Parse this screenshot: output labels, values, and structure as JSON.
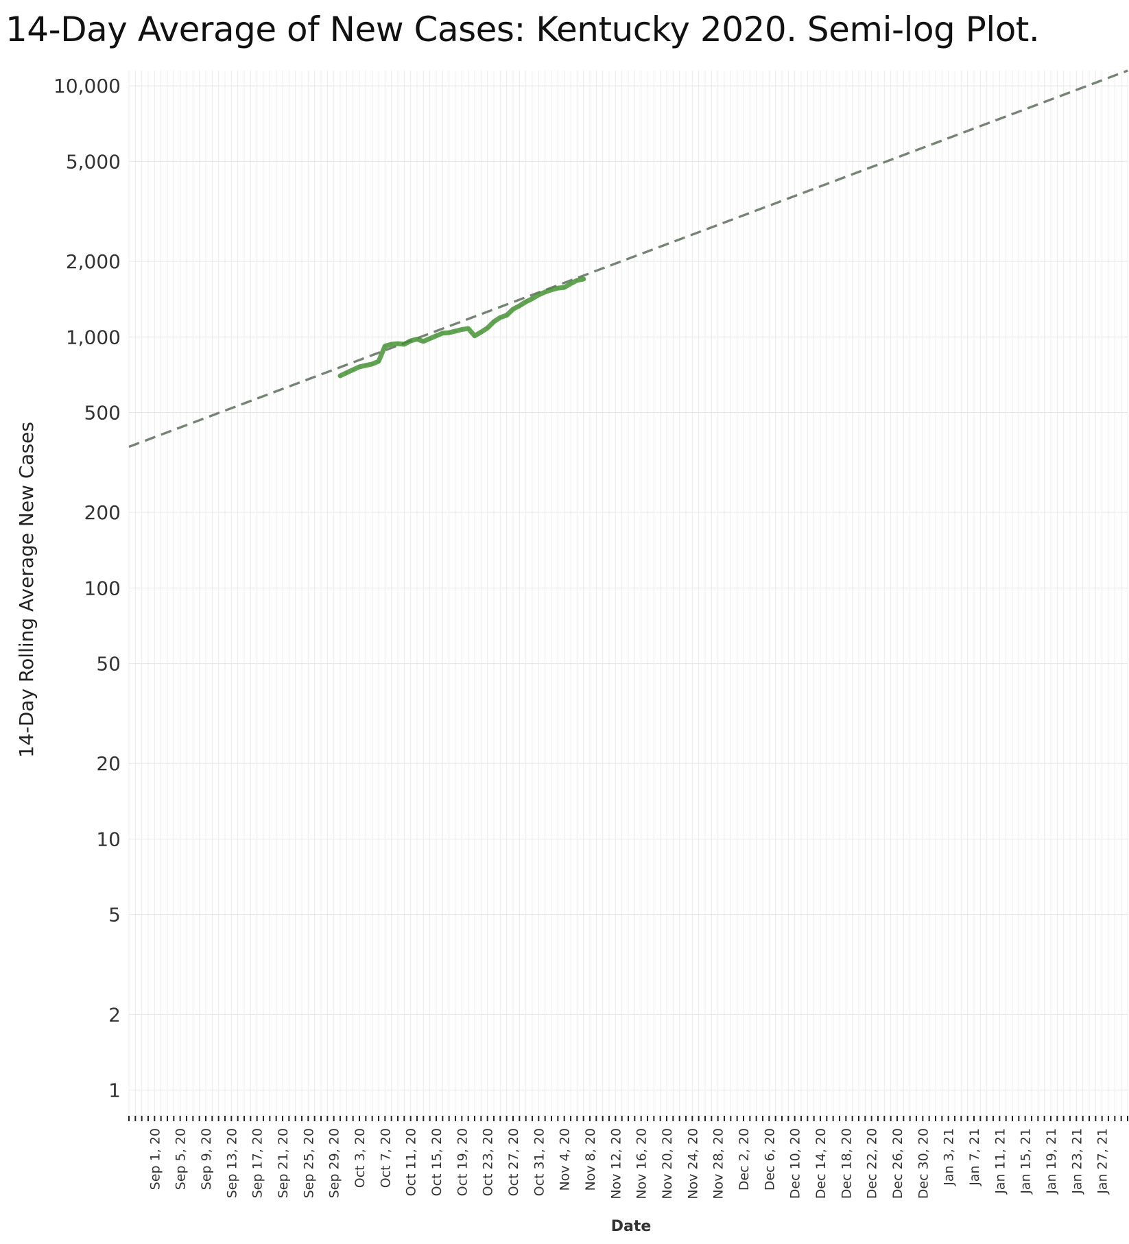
{
  "chart_data": {
    "type": "line",
    "title": "14-Day Average of New Cases:  Kentucky 2020.  Semi-log Plot.",
    "xlabel": "Date",
    "ylabel": "14-Day Rolling Average New Cases",
    "y_scale": "log",
    "ylim": [
      0.8,
      11500
    ],
    "xlim": [
      "2020-08-28",
      "2021-01-31"
    ],
    "grid": true,
    "y_ticks": [
      {
        "value": 1,
        "label": "1"
      },
      {
        "value": 2,
        "label": "2"
      },
      {
        "value": 5,
        "label": "5"
      },
      {
        "value": 10,
        "label": "10"
      },
      {
        "value": 20,
        "label": "20"
      },
      {
        "value": 50,
        "label": "50"
      },
      {
        "value": 100,
        "label": "100"
      },
      {
        "value": 200,
        "label": "200"
      },
      {
        "value": 500,
        "label": "500"
      },
      {
        "value": 1000,
        "label": "1,000"
      },
      {
        "value": 2000,
        "label": "2,000"
      },
      {
        "value": 5000,
        "label": "5,000"
      },
      {
        "value": 10000,
        "label": "10,000"
      }
    ],
    "x_ticks": [
      {
        "value": "2020-09-01",
        "label": "Sep 1, 20"
      },
      {
        "value": "2020-09-05",
        "label": "Sep 5, 20"
      },
      {
        "value": "2020-09-09",
        "label": "Sep 9, 20"
      },
      {
        "value": "2020-09-13",
        "label": "Sep 13, 20"
      },
      {
        "value": "2020-09-17",
        "label": "Sep 17, 20"
      },
      {
        "value": "2020-09-21",
        "label": "Sep 21, 20"
      },
      {
        "value": "2020-09-25",
        "label": "Sep 25, 20"
      },
      {
        "value": "2020-09-29",
        "label": "Sep 29, 20"
      },
      {
        "value": "2020-10-03",
        "label": "Oct 3, 20"
      },
      {
        "value": "2020-10-07",
        "label": "Oct 7, 20"
      },
      {
        "value": "2020-10-11",
        "label": "Oct 11, 20"
      },
      {
        "value": "2020-10-15",
        "label": "Oct 15, 20"
      },
      {
        "value": "2020-10-19",
        "label": "Oct 19, 20"
      },
      {
        "value": "2020-10-23",
        "label": "Oct 23, 20"
      },
      {
        "value": "2020-10-27",
        "label": "Oct 27, 20"
      },
      {
        "value": "2020-10-31",
        "label": "Oct 31, 20"
      },
      {
        "value": "2020-11-04",
        "label": "Nov 4, 20"
      },
      {
        "value": "2020-11-08",
        "label": "Nov 8, 20"
      },
      {
        "value": "2020-11-12",
        "label": "Nov 12, 20"
      },
      {
        "value": "2020-11-16",
        "label": "Nov 16, 20"
      },
      {
        "value": "2020-11-20",
        "label": "Nov 20, 20"
      },
      {
        "value": "2020-11-24",
        "label": "Nov 24, 20"
      },
      {
        "value": "2020-11-28",
        "label": "Nov 28, 20"
      },
      {
        "value": "2020-12-02",
        "label": "Dec 2, 20"
      },
      {
        "value": "2020-12-06",
        "label": "Dec 6, 20"
      },
      {
        "value": "2020-12-10",
        "label": "Dec 10, 20"
      },
      {
        "value": "2020-12-14",
        "label": "Dec 14, 20"
      },
      {
        "value": "2020-12-18",
        "label": "Dec 18, 20"
      },
      {
        "value": "2020-12-22",
        "label": "Dec 22, 20"
      },
      {
        "value": "2020-12-26",
        "label": "Dec 26, 20"
      },
      {
        "value": "2020-12-30",
        "label": "Dec 30, 20"
      },
      {
        "value": "2021-01-03",
        "label": "Jan 3, 21"
      },
      {
        "value": "2021-01-07",
        "label": "Jan 7, 21"
      },
      {
        "value": "2021-01-11",
        "label": "Jan 11, 21"
      },
      {
        "value": "2021-01-15",
        "label": "Jan 15, 21"
      },
      {
        "value": "2021-01-19",
        "label": "Jan 19, 21"
      },
      {
        "value": "2021-01-23",
        "label": "Jan 23, 21"
      },
      {
        "value": "2021-01-27",
        "label": "Jan 27, 21"
      }
    ],
    "series": [
      {
        "type": "line",
        "color": "#5a9e4b",
        "points": [
          {
            "x": "2020-09-30",
            "y": 700
          },
          {
            "x": "2020-10-01",
            "y": 720
          },
          {
            "x": "2020-10-02",
            "y": 740
          },
          {
            "x": "2020-10-03",
            "y": 760
          },
          {
            "x": "2020-10-04",
            "y": 770
          },
          {
            "x": "2020-10-05",
            "y": 780
          },
          {
            "x": "2020-10-06",
            "y": 800
          },
          {
            "x": "2020-10-07",
            "y": 920
          },
          {
            "x": "2020-10-08",
            "y": 935
          },
          {
            "x": "2020-10-09",
            "y": 940
          },
          {
            "x": "2020-10-10",
            "y": 935
          },
          {
            "x": "2020-10-11",
            "y": 965
          },
          {
            "x": "2020-10-12",
            "y": 980
          },
          {
            "x": "2020-10-13",
            "y": 960
          },
          {
            "x": "2020-10-14",
            "y": 985
          },
          {
            "x": "2020-10-15",
            "y": 1010
          },
          {
            "x": "2020-10-16",
            "y": 1035
          },
          {
            "x": "2020-10-17",
            "y": 1040
          },
          {
            "x": "2020-10-18",
            "y": 1055
          },
          {
            "x": "2020-10-19",
            "y": 1070
          },
          {
            "x": "2020-10-20",
            "y": 1080
          },
          {
            "x": "2020-10-21",
            "y": 1010
          },
          {
            "x": "2020-10-22",
            "y": 1045
          },
          {
            "x": "2020-10-23",
            "y": 1085
          },
          {
            "x": "2020-10-24",
            "y": 1150
          },
          {
            "x": "2020-10-25",
            "y": 1195
          },
          {
            "x": "2020-10-26",
            "y": 1220
          },
          {
            "x": "2020-10-27",
            "y": 1290
          },
          {
            "x": "2020-10-28",
            "y": 1330
          },
          {
            "x": "2020-10-29",
            "y": 1380
          },
          {
            "x": "2020-10-30",
            "y": 1420
          },
          {
            "x": "2020-10-31",
            "y": 1470
          },
          {
            "x": "2020-11-01",
            "y": 1510
          },
          {
            "x": "2020-11-02",
            "y": 1540
          },
          {
            "x": "2020-11-03",
            "y": 1565
          },
          {
            "x": "2020-11-04",
            "y": 1575
          },
          {
            "x": "2020-11-05",
            "y": 1630
          },
          {
            "x": "2020-11-06",
            "y": 1680
          },
          {
            "x": "2020-11-07",
            "y": 1700
          }
        ]
      },
      {
        "type": "trend",
        "style": "dashed",
        "color": "#999999",
        "points": [
          {
            "x": "2020-08-28",
            "y": 365
          },
          {
            "x": "2021-01-31",
            "y": 11500
          }
        ]
      }
    ]
  }
}
